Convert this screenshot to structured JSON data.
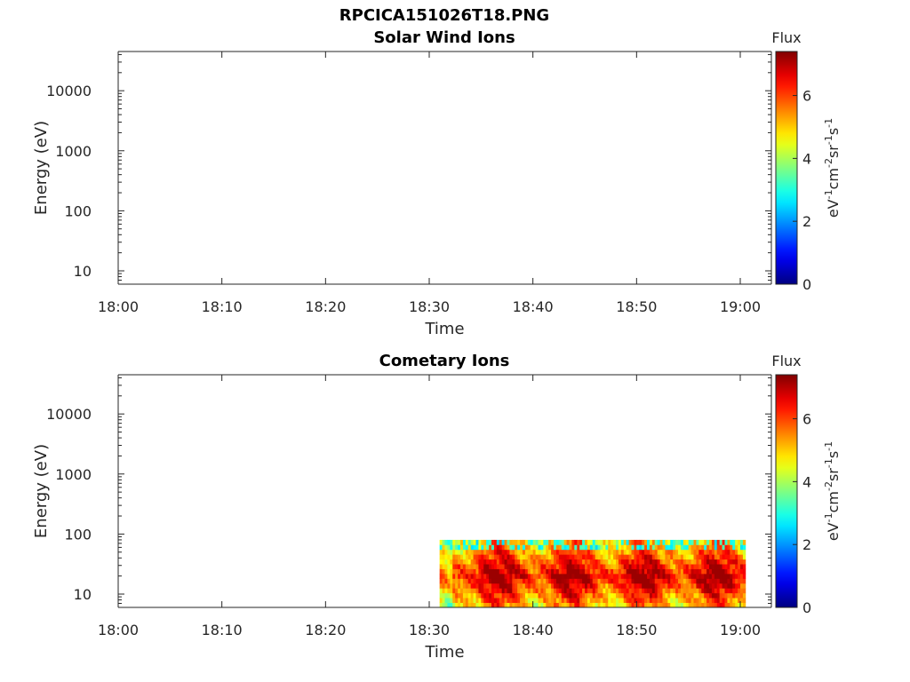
{
  "page": {
    "file_title": "RPCICA151026T18.PNG"
  },
  "chart_data": [
    {
      "type": "heatmap",
      "title": "Solar Wind Ions",
      "xlabel": "Time",
      "ylabel": "Energy (eV)",
      "x_ticks": [
        "18:00",
        "18:10",
        "18:20",
        "18:30",
        "18:40",
        "18:50",
        "19:00"
      ],
      "x_range_minutes": [
        0,
        63
      ],
      "y_scale": "log",
      "y_ticks": [
        "10",
        "100",
        "1000",
        "10000"
      ],
      "y_tick_values": [
        10,
        100,
        1000,
        10000
      ],
      "ylim": [
        6,
        45000
      ],
      "colorbar": {
        "label": "Flux",
        "unit": "eV-1cm-2sr-1s-1",
        "ticks": [
          "0",
          "2",
          "4",
          "6"
        ],
        "tick_values": [
          0,
          2,
          4,
          6
        ],
        "range": [
          0,
          7.4
        ],
        "colormap": "jet"
      },
      "data": []
    },
    {
      "type": "heatmap",
      "title": "Cometary Ions",
      "xlabel": "Time",
      "ylabel": "Energy (eV)",
      "x_ticks": [
        "18:00",
        "18:10",
        "18:20",
        "18:30",
        "18:40",
        "18:50",
        "19:00"
      ],
      "x_range_minutes": [
        0,
        63
      ],
      "y_scale": "log",
      "y_ticks": [
        "10",
        "100",
        "1000",
        "10000"
      ],
      "y_tick_values": [
        10,
        100,
        1000,
        10000
      ],
      "ylim": [
        6,
        45000
      ],
      "colorbar": {
        "label": "Flux",
        "unit": "eV-1cm-2sr-1s-1",
        "ticks": [
          "0",
          "2",
          "4",
          "6"
        ],
        "tick_values": [
          0,
          2,
          4,
          6
        ],
        "range": [
          0,
          7.4
        ],
        "colormap": "jet"
      },
      "data": {
        "time_start": "18:31",
        "time_end": "19:00.5",
        "energy_min_eV": 6,
        "energy_max_eV": 80,
        "flux_range": [
          2,
          7.2
        ],
        "peak_energy_eV": 20
      }
    }
  ]
}
